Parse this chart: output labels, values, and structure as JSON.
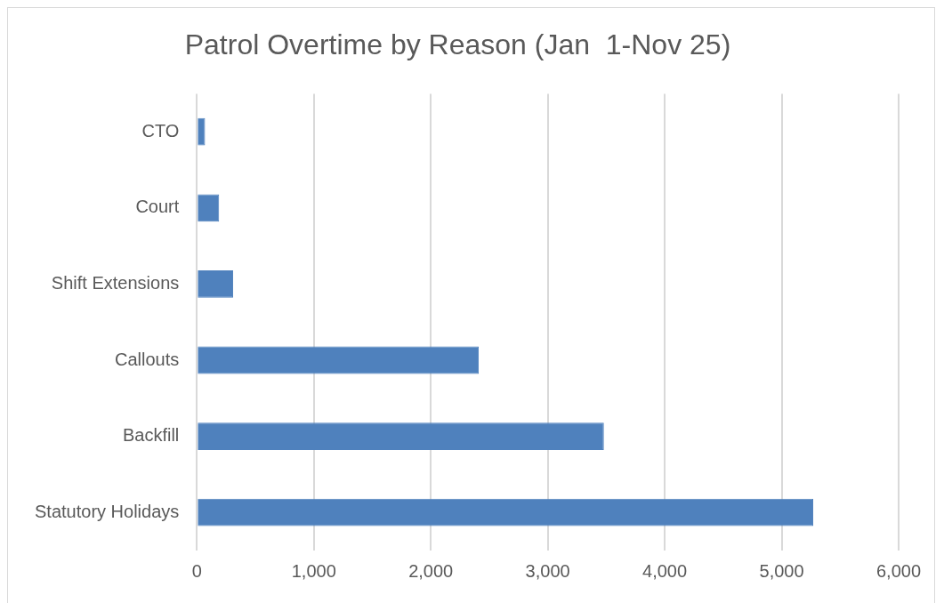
{
  "chart_data": {
    "type": "bar",
    "orientation": "horizontal",
    "title": "Patrol Overtime by Reason (Jan  1-Nov 25)",
    "categories": [
      "CTO",
      "Court",
      "Shift Extensions",
      "Callouts",
      "Backfill",
      "Statutory Holidays"
    ],
    "values": [
      70,
      190,
      310,
      2410,
      3480,
      5270
    ],
    "color": "#4f81bd",
    "xlim": [
      0,
      6000
    ],
    "xticks": [
      0,
      {
        "value": 1000,
        "label": "1,000"
      },
      {
        "value": 2000,
        "label": "2,000"
      },
      {
        "value": 3000,
        "label": "3,000"
      },
      {
        "value": 4000,
        "label": "4,000"
      },
      {
        "value": 5000,
        "label": "5,000"
      },
      {
        "value": 6000,
        "label": "6,000"
      }
    ],
    "grid": "x",
    "legend": false
  }
}
